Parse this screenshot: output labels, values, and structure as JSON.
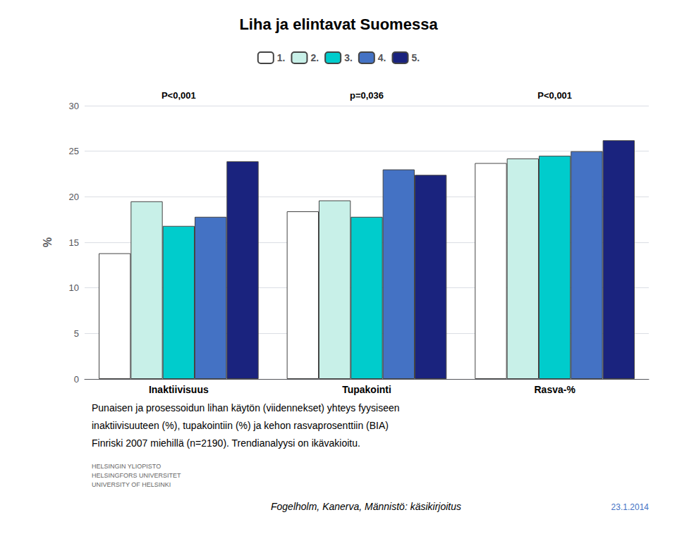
{
  "chart_data": {
    "type": "bar",
    "title": "Liha ja elintavat Suomessa",
    "y_label": "%",
    "categories": [
      "Inaktiivisuus",
      "Tupakointi",
      "Rasva-%"
    ],
    "series": [
      {
        "name": "1.",
        "color": "#ffffff",
        "values": [
          13.8,
          18.4,
          23.7
        ]
      },
      {
        "name": "2.",
        "color": "#c8f0e8",
        "values": [
          19.5,
          19.6,
          24.2
        ]
      },
      {
        "name": "3.",
        "color": "#00cccc",
        "values": [
          16.8,
          17.8,
          24.5
        ]
      },
      {
        "name": "4.",
        "color": "#4472c4",
        "values": [
          17.8,
          23.0,
          25.0
        ]
      },
      {
        "name": "5.",
        "color": "#1a237e",
        "values": [
          23.9,
          22.4,
          26.2
        ]
      }
    ],
    "annotations": [
      "P<0,001",
      "p=0,036",
      "P<0,001"
    ],
    "footnotes": [
      "Punaisen ja prosessoidun lihan käytön (viidennekset) yhteys fyysiseen",
      "inaktiivisuuteen (%), tupakointiin (%) ja kehon rasvaprosenttiin (BIA)",
      "Finriski 2007 miehillä (n=2190). Trendianalyysi on ikävakioitu.",
      "HELSINGIN YLIOPISTO\nHELSINGFORS UNIVERSITET\nUNIVERSITY OF HELSINKI",
      "Fogelholm, Kanerva, Männistö: käsikirjoitus",
      "23.1.2014"
    ],
    "ylim": [
      0,
      30
    ],
    "yticks": [
      0,
      5,
      10,
      15,
      20,
      25,
      30
    ],
    "grid": true,
    "legend": "top"
  }
}
